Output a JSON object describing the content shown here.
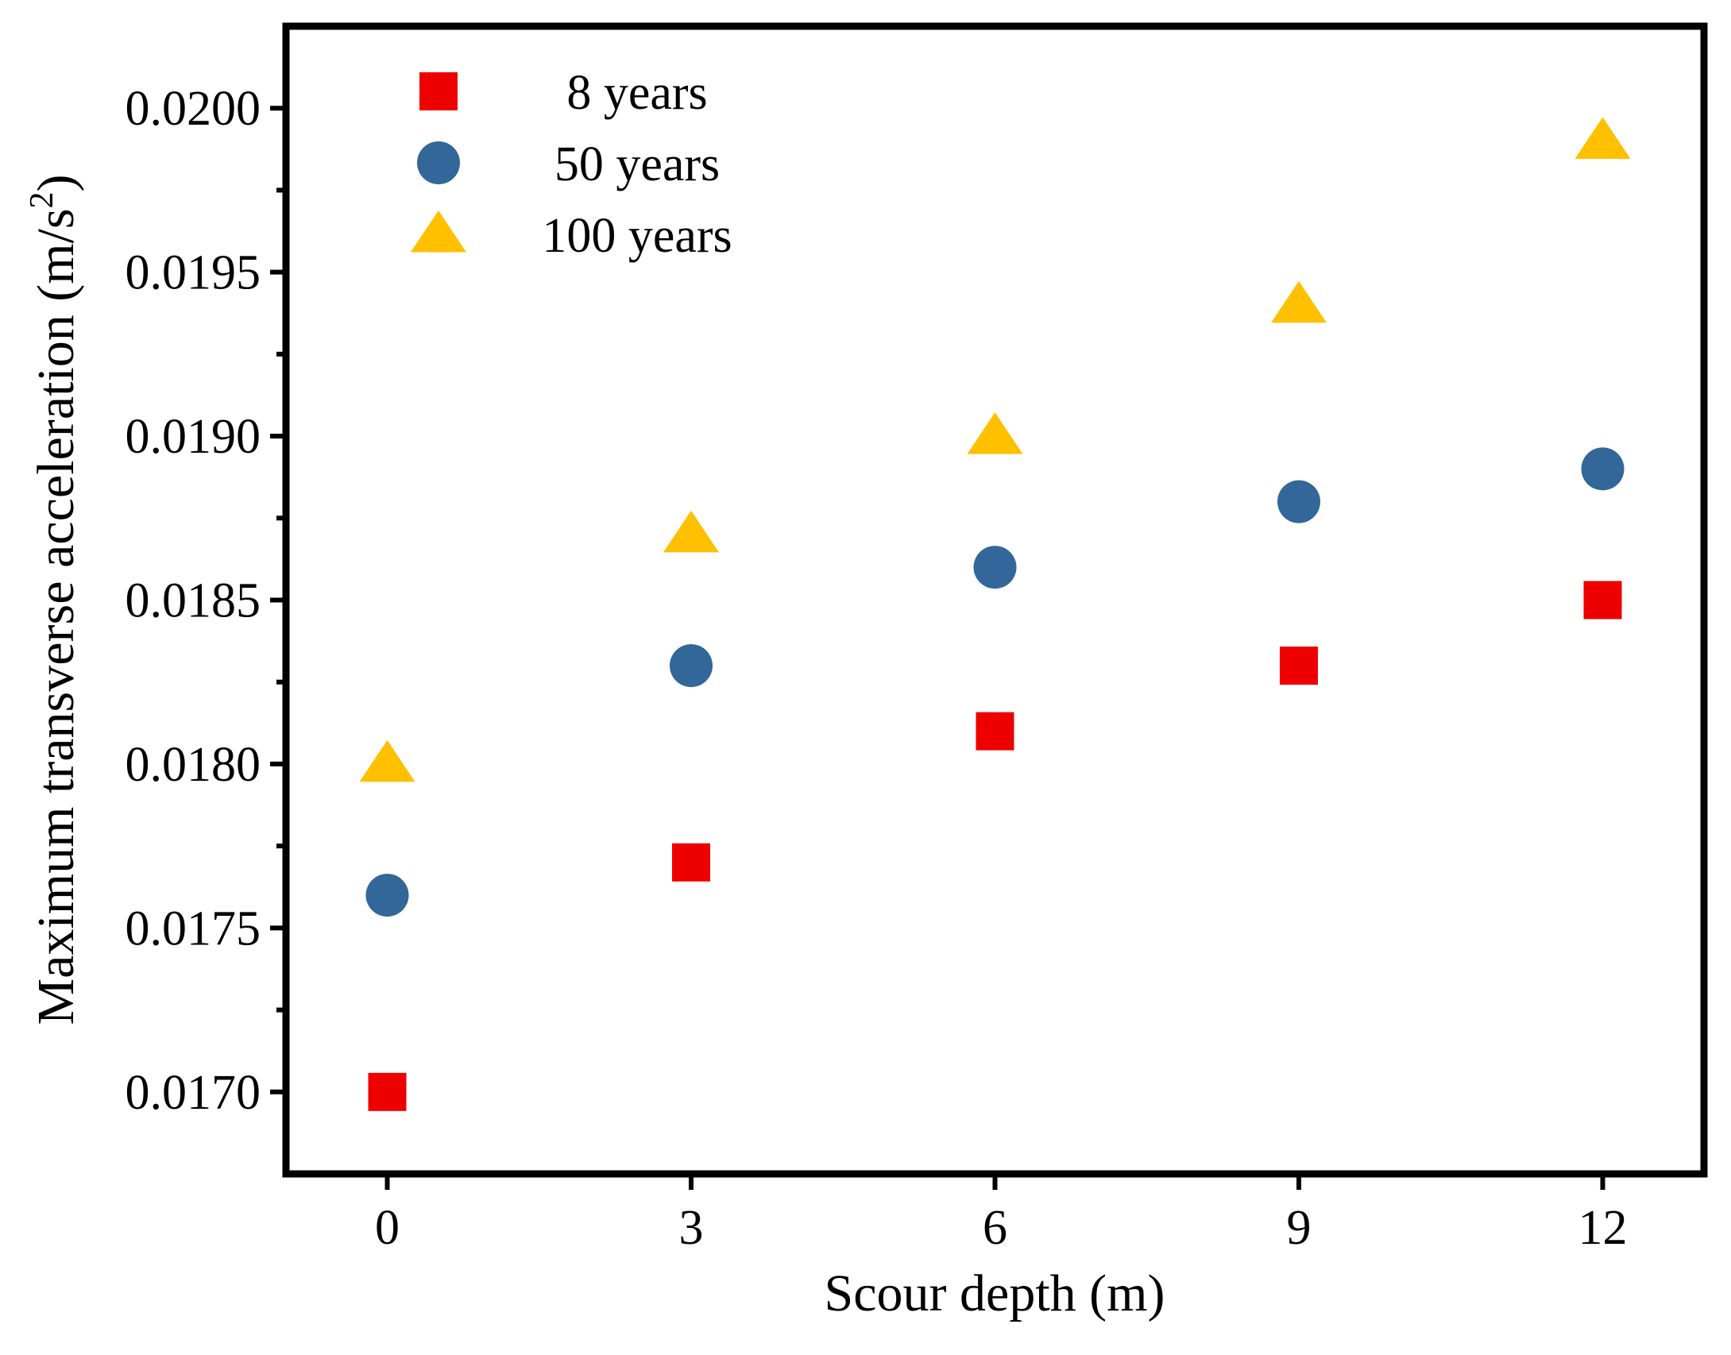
{
  "chart_data": {
    "type": "scatter",
    "title": "",
    "xlabel": "Scour depth (m)",
    "ylabel_main": "Maximum transverse acceleration (m/s",
    "ylabel_sup": "2",
    "ylabel_end": ")",
    "xlim": [
      -1,
      13
    ],
    "ylim": [
      0.01675,
      0.02025
    ],
    "xticks": [
      0,
      3,
      6,
      9,
      12
    ],
    "xtick_labels": [
      "0",
      "3",
      "6",
      "9",
      "12"
    ],
    "yticks": [
      0.017,
      0.0175,
      0.018,
      0.0185,
      0.019,
      0.0195,
      0.02
    ],
    "ytick_labels": [
      "0.0170",
      "0.0175",
      "0.0180",
      "0.0185",
      "0.0190",
      "0.0195",
      "0.0200"
    ],
    "legend_position": "top-left",
    "series": [
      {
        "name": "8 years",
        "marker": "square",
        "color": "#ee0000",
        "x": [
          0,
          3,
          6,
          9,
          12
        ],
        "y": [
          0.017,
          0.0177,
          0.0181,
          0.0183,
          0.0185
        ]
      },
      {
        "name": "50 years",
        "marker": "circle",
        "color": "#336699",
        "x": [
          0,
          3,
          6,
          9,
          12
        ],
        "y": [
          0.0176,
          0.0183,
          0.0186,
          0.0188,
          0.0189
        ]
      },
      {
        "name": "100 years",
        "marker": "triangle",
        "color": "#ffc000",
        "x": [
          0,
          3,
          6,
          9,
          12
        ],
        "y": [
          0.018,
          0.0187,
          0.019,
          0.0194,
          0.0199
        ]
      }
    ]
  }
}
